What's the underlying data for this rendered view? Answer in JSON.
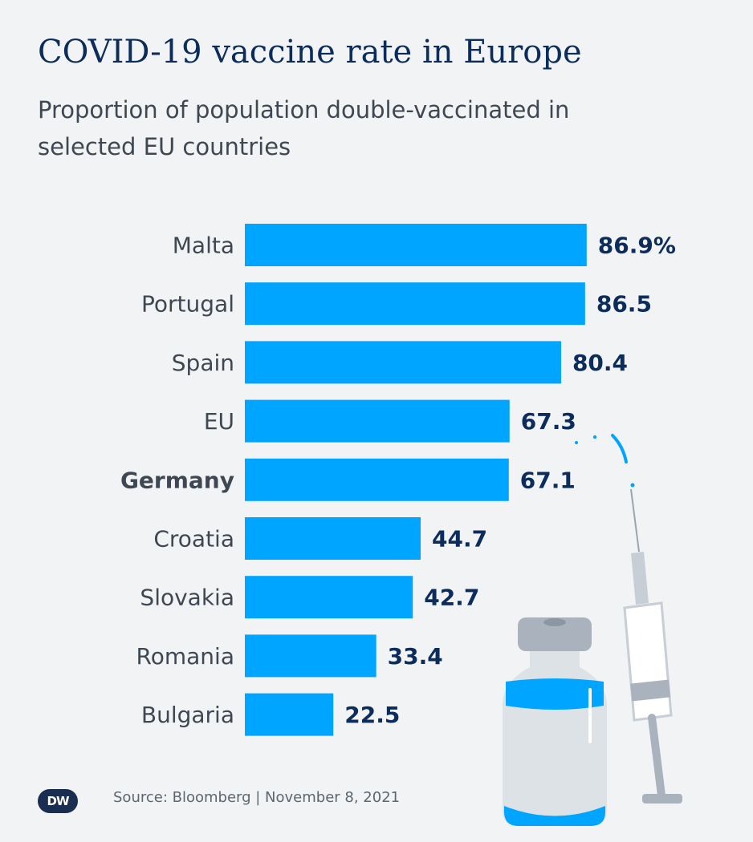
{
  "header": {
    "title": "COVID-19 vaccine rate in Europe",
    "subtitle": "Proportion of population double-vaccinated in selected EU countries"
  },
  "footer": {
    "logo_text": "DW",
    "source": "Source: Bloomberg | November 8, 2021"
  },
  "colors": {
    "bar": "#00a5ff",
    "value_text": "#0c2d5c",
    "label_text": "#3f4852",
    "background": "#f1f3f5"
  },
  "chart_data": {
    "type": "bar",
    "orientation": "horizontal",
    "title": "COVID-19 vaccine rate in Europe",
    "subtitle": "Proportion of population double-vaccinated in selected EU countries",
    "categories": [
      "Malta",
      "Portugal",
      "Spain",
      "EU",
      "Germany",
      "Croatia",
      "Slovakia",
      "Romania",
      "Bulgaria"
    ],
    "values": [
      86.9,
      86.5,
      80.4,
      67.3,
      67.1,
      44.7,
      42.7,
      33.4,
      22.5
    ],
    "value_labels": [
      "86.9%",
      "86.5",
      "80.4",
      "67.3",
      "67.1",
      "44.7",
      "42.7",
      "33.4",
      "22.5"
    ],
    "highlighted_category": "Germany",
    "xlim": [
      0,
      100
    ],
    "unit": "%",
    "grid": false
  }
}
